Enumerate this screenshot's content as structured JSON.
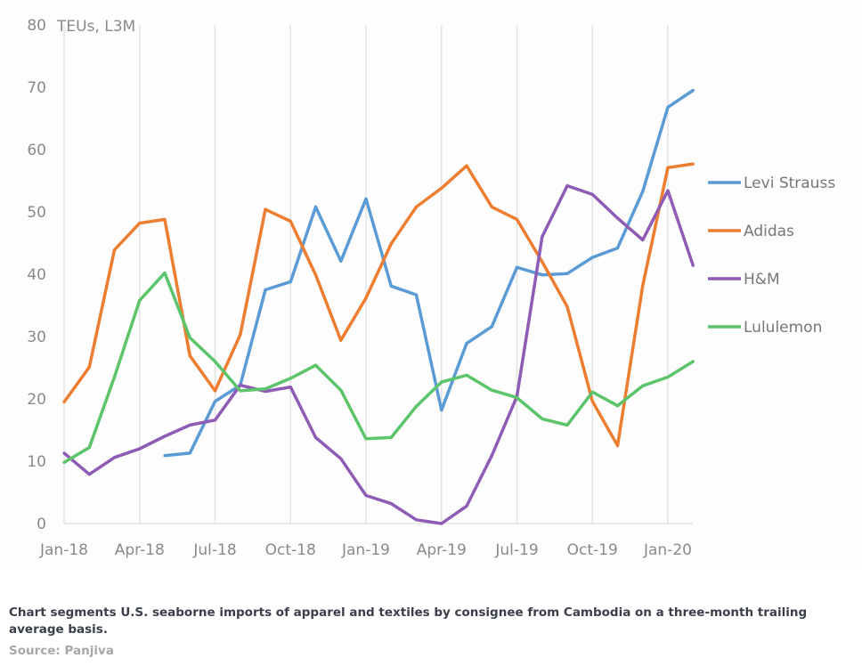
{
  "chart_data": {
    "type": "line",
    "title": "",
    "ylabel": "TEUs, L3M",
    "xlabel": "",
    "ylim": [
      0,
      80
    ],
    "yticks": [
      0,
      10,
      20,
      30,
      40,
      50,
      60,
      70,
      80
    ],
    "grid": "vertical",
    "legend_position": "right",
    "x": [
      "Jan-18",
      "Feb-18",
      "Mar-18",
      "Apr-18",
      "May-18",
      "Jun-18",
      "Jul-18",
      "Aug-18",
      "Sep-18",
      "Oct-18",
      "Nov-18",
      "Dec-18",
      "Jan-19",
      "Feb-19",
      "Mar-19",
      "Apr-19",
      "May-19",
      "Jun-19",
      "Jul-19",
      "Aug-19",
      "Sep-19",
      "Oct-19",
      "Nov-19",
      "Dec-19",
      "Jan-20",
      "Feb-20"
    ],
    "xtick_labels": [
      "Jan-18",
      "Apr-18",
      "Jul-18",
      "Oct-18",
      "Jan-19",
      "Apr-19",
      "Jul-19",
      "Oct-19",
      "Jan-20"
    ],
    "series": [
      {
        "name": "Levi Strauss",
        "color": "#5b9bd5",
        "values": [
          null,
          null,
          null,
          null,
          10.9,
          11.3,
          19.6,
          22.2,
          37.5,
          38.8,
          50.8,
          42.1,
          52.1,
          38.1,
          36.7,
          18.2,
          28.9,
          31.6,
          41.1,
          39.9,
          40.1,
          42.7,
          44.2,
          53.3,
          66.8,
          69.5
        ]
      },
      {
        "name": "Adidas",
        "color": "#ed7d31",
        "values": [
          19.5,
          25.1,
          43.9,
          48.2,
          48.8,
          26.9,
          21.3,
          30.3,
          50.4,
          48.5,
          39.9,
          29.4,
          36.2,
          44.9,
          50.8,
          53.8,
          57.4,
          50.8,
          48.8,
          42.0,
          34.8,
          19.6,
          12.5,
          38.2,
          57.1,
          57.7
        ]
      },
      {
        "name": "H&M",
        "color": "#8e5bb5",
        "values": [
          11.3,
          7.9,
          10.6,
          12.0,
          14.0,
          15.8,
          16.6,
          22.2,
          21.2,
          21.9,
          13.8,
          10.4,
          4.5,
          3.2,
          0.6,
          0.0,
          2.8,
          10.9,
          20.4,
          46.0,
          54.2,
          52.8,
          49.0,
          45.5,
          53.4,
          41.4
        ]
      },
      {
        "name": "Lululemon",
        "color": "#5cc46a",
        "values": [
          9.8,
          12.2,
          23.5,
          35.8,
          40.2,
          29.8,
          26.0,
          21.3,
          21.6,
          23.3,
          25.4,
          21.4,
          13.6,
          13.8,
          18.8,
          22.7,
          23.8,
          21.4,
          20.2,
          16.8,
          15.8,
          21.1,
          18.9,
          22.1,
          23.5,
          26.0
        ]
      }
    ]
  },
  "caption": "Chart segments U.S. seaborne imports of apparel and textiles by consignee from Cambodia on a three-month trailing average basis.",
  "source": "Source: Panjiva"
}
